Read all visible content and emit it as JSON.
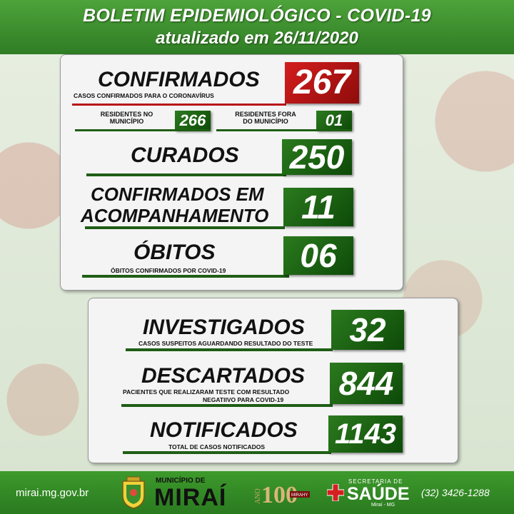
{
  "header": {
    "title": "BOLETIM EPIDEMIOLÓGICO - COVID-19",
    "subtitle": "atualizado em 26/11/2020"
  },
  "confirmados": {
    "label": "CONFIRMADOS",
    "sublabel": "CASOS CONFIRMADOS PARA O CORONAVÍRUS",
    "value": "267",
    "residentes_label_1": "RESIDENTES NO",
    "residentes_label_2": "MUNICÍPIO",
    "residentes_value": "266",
    "fora_label_1": "RESIDENTES FORA",
    "fora_label_2": "DO MUNICÍPIO",
    "fora_value": "01"
  },
  "curados": {
    "label": "CURADOS",
    "value": "250"
  },
  "acompanhamento": {
    "label_1": "CONFIRMADOS EM",
    "label_2": "ACOMPANHAMENTO",
    "value": "11"
  },
  "obitos": {
    "label": "ÓBITOS",
    "sublabel": "ÓBITOS CONFIRMADOS POR COVID-19",
    "value": "06"
  },
  "investigados": {
    "label": "INVESTIGADOS",
    "sublabel": "CASOS SUSPEITOS AGUARDANDO RESULTADO DO TESTE",
    "value": "32"
  },
  "descartados": {
    "label": "DESCARTADOS",
    "sublabel_1": "PACIENTES   QUE   REALIZARAM   TESTE   COM   RESULTADO",
    "sublabel_2": "NEGATIIVO PARA COVID-19",
    "value": "844"
  },
  "notificados": {
    "label": "NOTIFICADOS",
    "sublabel": "TOTAL DE CASOS NOTIFICADOS",
    "value": "1143"
  },
  "footer": {
    "url": "mirai.mg.gov.br",
    "municipio_small": "MUNICÍPIO DE",
    "municipio_big": "MIRAÍ",
    "anniversary_logo_text": "ANO 100 MIRAHY",
    "secretaria_small": "SECRETARIA DE",
    "secretaria_big": "SAÚDE",
    "secretaria_tiny": "Miraí - MG",
    "phone": "(32) 3426-1288"
  },
  "colors": {
    "brand_green": "#2f7d25",
    "box_green": "#0d4a08",
    "alert_red": "#c41818"
  }
}
